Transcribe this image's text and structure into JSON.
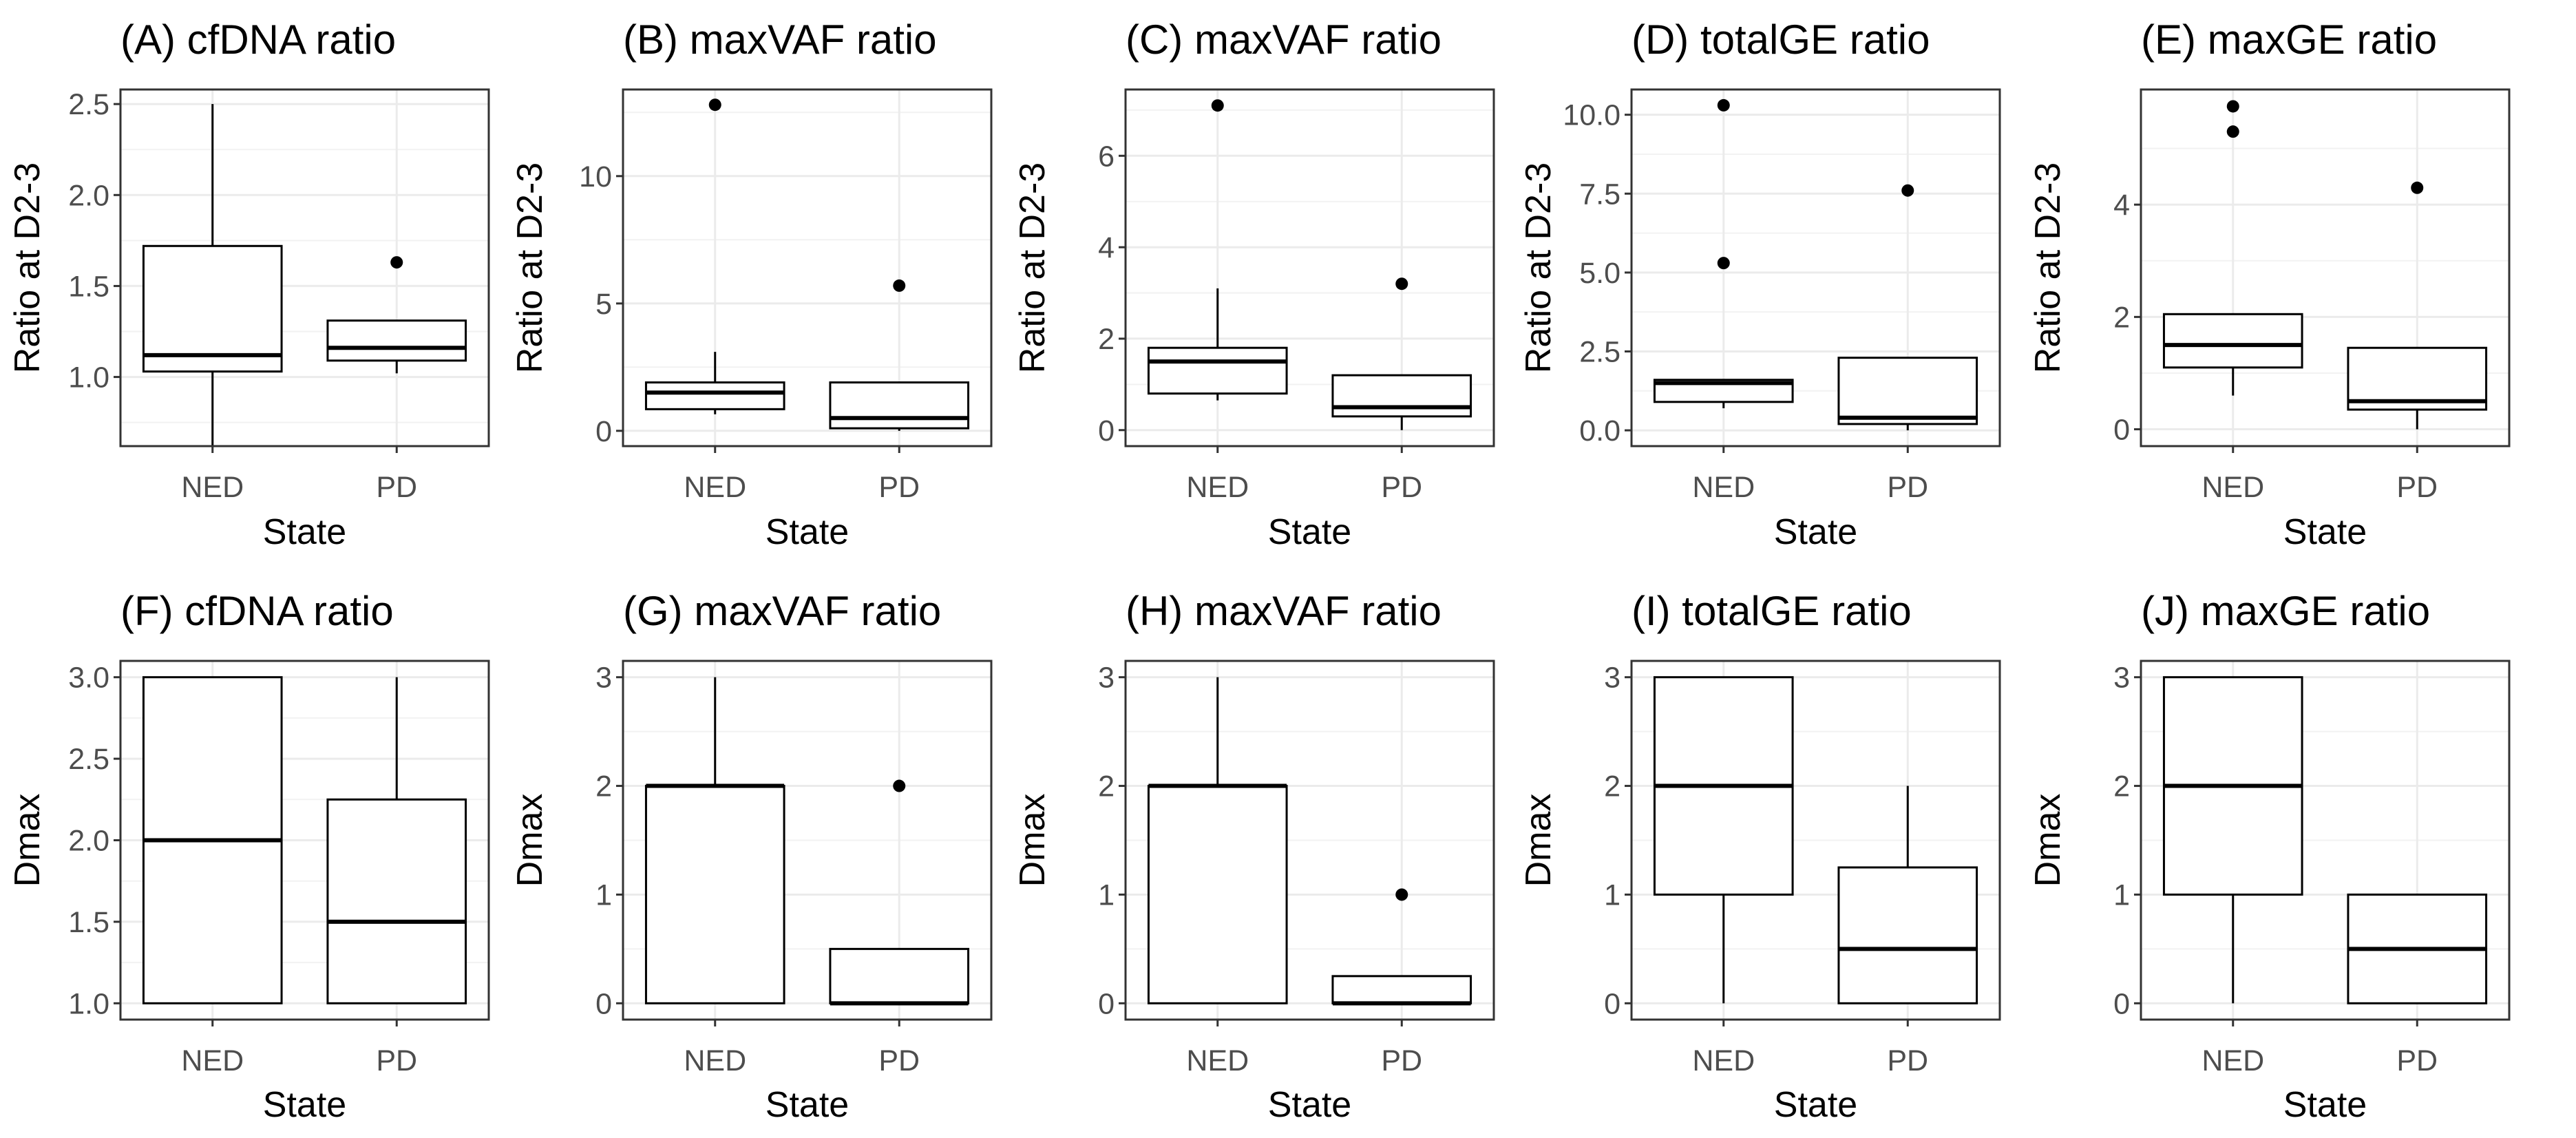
{
  "chart_data": [
    {
      "id": "A",
      "type": "boxplot",
      "title": "(A) cfDNA ratio",
      "xlabel": "State",
      "ylabel": "Ratio at D2-3",
      "categories": [
        "NED",
        "PD"
      ],
      "ylim": [
        0.62,
        2.58
      ],
      "yticks": [
        1.0,
        1.5,
        2.0,
        2.5
      ],
      "ytick_labels": [
        "1.0",
        "1.5",
        "2.0",
        "2.5"
      ],
      "boxes": [
        {
          "category": "NED",
          "q1": 1.03,
          "median": 1.12,
          "q3": 1.72,
          "whisker_low": 0.62,
          "whisker_high": 2.5,
          "outliers": []
        },
        {
          "category": "PD",
          "q1": 1.09,
          "median": 1.16,
          "q3": 1.31,
          "whisker_low": 1.02,
          "whisker_high": 1.31,
          "outliers": [
            1.63
          ]
        }
      ]
    },
    {
      "id": "B",
      "type": "boxplot",
      "title": "(B) maxVAF ratio",
      "xlabel": "State",
      "ylabel": "Ratio at D2-3",
      "categories": [
        "NED",
        "PD"
      ],
      "ylim": [
        -0.6,
        13.4
      ],
      "yticks": [
        0,
        5,
        10
      ],
      "ytick_labels": [
        "0",
        "5",
        "10"
      ],
      "boxes": [
        {
          "category": "NED",
          "q1": 0.85,
          "median": 1.5,
          "q3": 1.9,
          "whisker_low": 0.65,
          "whisker_high": 3.1,
          "outliers": [
            12.8
          ]
        },
        {
          "category": "PD",
          "q1": 0.1,
          "median": 0.5,
          "q3": 1.9,
          "whisker_low": 0.0,
          "whisker_high": 1.9,
          "outliers": [
            5.7
          ]
        }
      ]
    },
    {
      "id": "C",
      "type": "boxplot",
      "title": "(C) maxVAF ratio",
      "xlabel": "State",
      "ylabel": "Ratio at D2-3",
      "categories": [
        "NED",
        "PD"
      ],
      "ylim": [
        -0.35,
        7.45
      ],
      "yticks": [
        0,
        2,
        4,
        6
      ],
      "ytick_labels": [
        "0",
        "2",
        "4",
        "6"
      ],
      "boxes": [
        {
          "category": "NED",
          "q1": 0.8,
          "median": 1.5,
          "q3": 1.8,
          "whisker_low": 0.65,
          "whisker_high": 3.1,
          "outliers": [
            7.1
          ]
        },
        {
          "category": "PD",
          "q1": 0.3,
          "median": 0.5,
          "q3": 1.2,
          "whisker_low": 0.0,
          "whisker_high": 1.2,
          "outliers": [
            3.2
          ]
        }
      ]
    },
    {
      "id": "D",
      "type": "boxplot",
      "title": "(D) totalGE ratio",
      "xlabel": "State",
      "ylabel": "Ratio at D2-3",
      "categories": [
        "NED",
        "PD"
      ],
      "ylim": [
        -0.5,
        10.8
      ],
      "yticks": [
        0,
        2.5,
        5,
        7.5,
        10
      ],
      "ytick_labels": [
        "0.0",
        "2.5",
        "5.0",
        "7.5",
        "10.0"
      ],
      "boxes": [
        {
          "category": "NED",
          "q1": 0.9,
          "median": 1.5,
          "q3": 1.6,
          "whisker_low": 0.7,
          "whisker_high": 1.6,
          "outliers": [
            5.3,
            10.3
          ]
        },
        {
          "category": "PD",
          "q1": 0.2,
          "median": 0.4,
          "q3": 2.3,
          "whisker_low": 0.0,
          "whisker_high": 2.3,
          "outliers": [
            7.6
          ]
        }
      ]
    },
    {
      "id": "E",
      "type": "boxplot",
      "title": "(E) maxGE ratio",
      "xlabel": "State",
      "ylabel": "Ratio at D2-3",
      "categories": [
        "NED",
        "PD"
      ],
      "ylim": [
        -0.3,
        6.05
      ],
      "yticks": [
        0,
        2,
        4
      ],
      "ytick_labels": [
        "0",
        "2",
        "4"
      ],
      "boxes": [
        {
          "category": "NED",
          "q1": 1.1,
          "median": 1.5,
          "q3": 2.05,
          "whisker_low": 0.6,
          "whisker_high": 2.05,
          "outliers": [
            5.3,
            5.75
          ]
        },
        {
          "category": "PD",
          "q1": 0.35,
          "median": 0.5,
          "q3": 1.45,
          "whisker_low": 0.0,
          "whisker_high": 1.45,
          "outliers": [
            4.3
          ]
        }
      ]
    },
    {
      "id": "F",
      "type": "boxplot",
      "title": "(F) cfDNA ratio",
      "xlabel": "State",
      "ylabel": "Dmax",
      "categories": [
        "NED",
        "PD"
      ],
      "ylim": [
        0.9,
        3.1
      ],
      "yticks": [
        1.0,
        1.5,
        2.0,
        2.5,
        3.0
      ],
      "ytick_labels": [
        "1.0",
        "1.5",
        "2.0",
        "2.5",
        "3.0"
      ],
      "boxes": [
        {
          "category": "NED",
          "q1": 1.0,
          "median": 2.0,
          "q3": 3.0,
          "whisker_low": 1.0,
          "whisker_high": 3.0,
          "outliers": []
        },
        {
          "category": "PD",
          "q1": 1.0,
          "median": 1.5,
          "q3": 2.25,
          "whisker_low": 1.0,
          "whisker_high": 3.0,
          "outliers": []
        }
      ]
    },
    {
      "id": "G",
      "type": "boxplot",
      "title": "(G) maxVAF ratio",
      "xlabel": "State",
      "ylabel": "Dmax",
      "categories": [
        "NED",
        "PD"
      ],
      "ylim": [
        -0.15,
        3.15
      ],
      "yticks": [
        0,
        1,
        2,
        3
      ],
      "ytick_labels": [
        "0",
        "1",
        "2",
        "3"
      ],
      "boxes": [
        {
          "category": "NED",
          "q1": 0.0,
          "median": 2.0,
          "q3": 2.0,
          "whisker_low": 0.0,
          "whisker_high": 3.0,
          "outliers": []
        },
        {
          "category": "PD",
          "q1": 0.0,
          "median": 0.0,
          "q3": 0.5,
          "whisker_low": 0.0,
          "whisker_high": 0.5,
          "outliers": [
            2.0
          ]
        }
      ]
    },
    {
      "id": "H",
      "type": "boxplot",
      "title": "(H) maxVAF ratio",
      "xlabel": "State",
      "ylabel": "Dmax",
      "categories": [
        "NED",
        "PD"
      ],
      "ylim": [
        -0.15,
        3.15
      ],
      "yticks": [
        0,
        1,
        2,
        3
      ],
      "ytick_labels": [
        "0",
        "1",
        "2",
        "3"
      ],
      "boxes": [
        {
          "category": "NED",
          "q1": 0.0,
          "median": 2.0,
          "q3": 2.0,
          "whisker_low": 0.0,
          "whisker_high": 3.0,
          "outliers": []
        },
        {
          "category": "PD",
          "q1": 0.0,
          "median": 0.0,
          "q3": 0.25,
          "whisker_low": 0.0,
          "whisker_high": 0.25,
          "outliers": [
            1.0
          ]
        }
      ]
    },
    {
      "id": "I",
      "type": "boxplot",
      "title": "(I) totalGE ratio",
      "xlabel": "State",
      "ylabel": "Dmax",
      "categories": [
        "NED",
        "PD"
      ],
      "ylim": [
        -0.15,
        3.15
      ],
      "yticks": [
        0,
        1,
        2,
        3
      ],
      "ytick_labels": [
        "0",
        "1",
        "2",
        "3"
      ],
      "boxes": [
        {
          "category": "NED",
          "q1": 1.0,
          "median": 2.0,
          "q3": 3.0,
          "whisker_low": 0.0,
          "whisker_high": 3.0,
          "outliers": []
        },
        {
          "category": "PD",
          "q1": 0.0,
          "median": 0.5,
          "q3": 1.25,
          "whisker_low": 0.0,
          "whisker_high": 2.0,
          "outliers": []
        }
      ]
    },
    {
      "id": "J",
      "type": "boxplot",
      "title": "(J) maxGE ratio",
      "xlabel": "State",
      "ylabel": "Dmax",
      "categories": [
        "NED",
        "PD"
      ],
      "ylim": [
        -0.15,
        3.15
      ],
      "yticks": [
        0,
        1,
        2,
        3
      ],
      "ytick_labels": [
        "0",
        "1",
        "2",
        "3"
      ],
      "boxes": [
        {
          "category": "NED",
          "q1": 1.0,
          "median": 2.0,
          "q3": 3.0,
          "whisker_low": 0.0,
          "whisker_high": 3.0,
          "outliers": []
        },
        {
          "category": "PD",
          "q1": 0.0,
          "median": 0.5,
          "q3": 1.0,
          "whisker_low": 0.0,
          "whisker_high": 1.0,
          "outliers": []
        }
      ]
    }
  ]
}
